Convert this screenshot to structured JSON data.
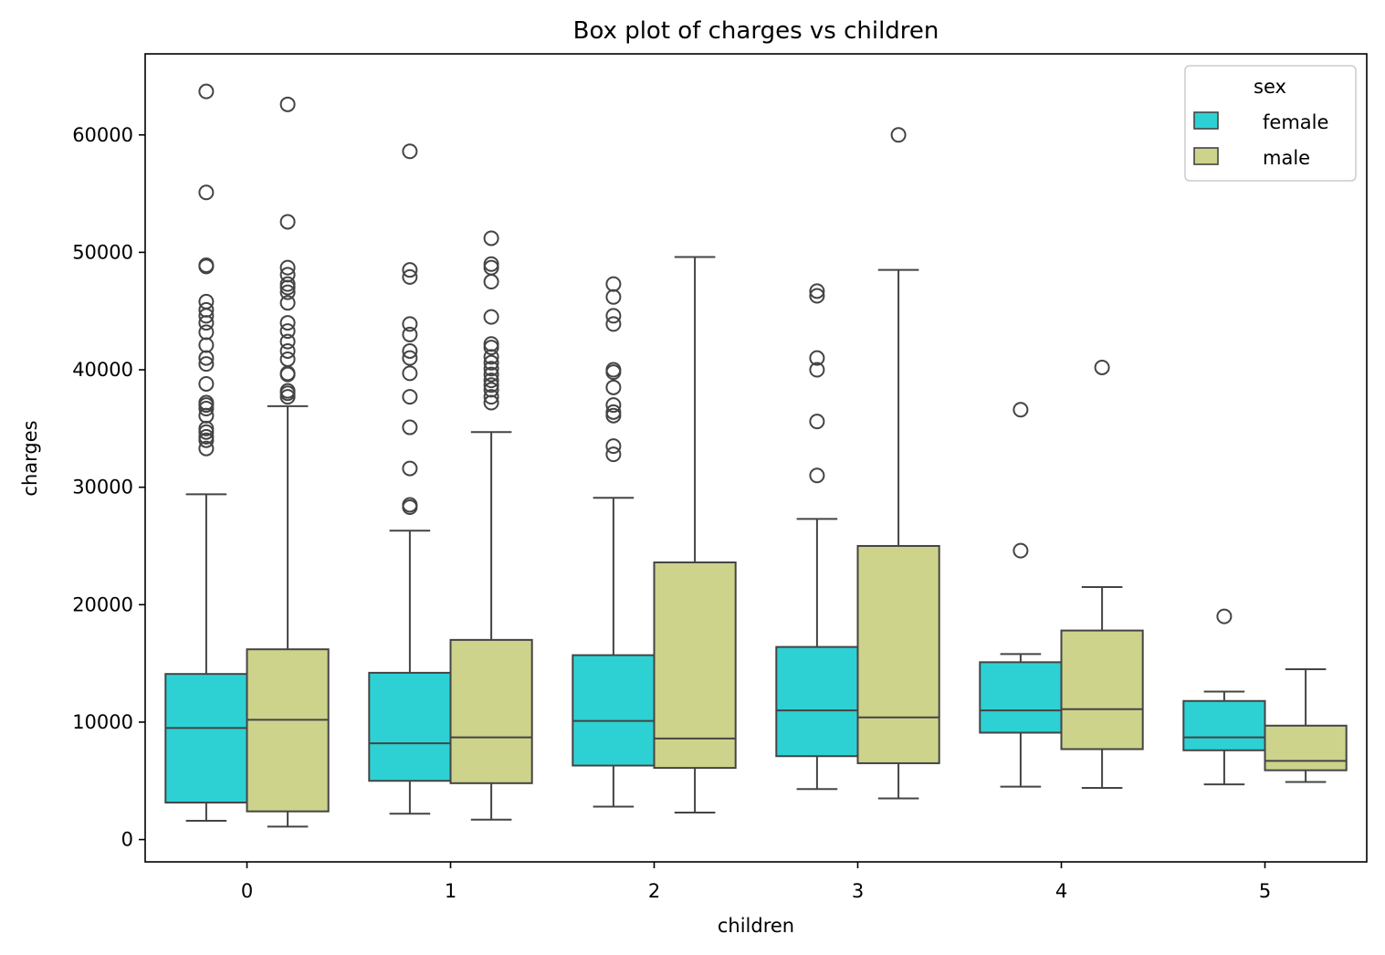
{
  "chart_data": {
    "type": "box",
    "title": "Box plot of charges vs children",
    "xlabel": "children",
    "ylabel": "charges",
    "ylim": [
      -1900,
      66900
    ],
    "yticks": [
      0,
      10000,
      20000,
      30000,
      40000,
      50000,
      60000
    ],
    "ytick_labels": [
      "0",
      "10000",
      "20000",
      "30000",
      "40000",
      "50000",
      "60000"
    ],
    "categories": [
      "0",
      "1",
      "2",
      "3",
      "4",
      "5"
    ],
    "legend": {
      "title": "sex",
      "position": "top-right"
    },
    "grid": false,
    "series": [
      {
        "name": "female",
        "color": "#2ed1d3",
        "boxes": [
          {
            "category": "0",
            "whislo": 1600,
            "q1": 3150,
            "med": 9500,
            "q3": 14100,
            "whishi": 29400,
            "fliers": [
              33300,
              34000,
              34300,
              34700,
              35000,
              36100,
              36700,
              37000,
              37200,
              38800,
              40500,
              41000,
              42100,
              43200,
              44000,
              44600,
              45100,
              45800,
              48800,
              48900,
              55100,
              63700
            ]
          },
          {
            "category": "1",
            "whislo": 2200,
            "q1": 5000,
            "med": 8200,
            "q3": 14200,
            "whishi": 26300,
            "fliers": [
              28300,
              28500,
              31600,
              35100,
              37700,
              39700,
              41000,
              41600,
              43000,
              43900,
              47900,
              48500,
              58600
            ]
          },
          {
            "category": "2",
            "whislo": 2800,
            "q1": 6300,
            "med": 10100,
            "q3": 15700,
            "whishi": 29100,
            "fliers": [
              32800,
              33500,
              36100,
              36400,
              37000,
              38500,
              39800,
              40000,
              43900,
              44600,
              46200,
              47300
            ]
          },
          {
            "category": "3",
            "whislo": 4300,
            "q1": 7100,
            "med": 11000,
            "q3": 16400,
            "whishi": 27300,
            "fliers": [
              31000,
              35600,
              40000,
              41000,
              46300,
              46700
            ]
          },
          {
            "category": "4",
            "whislo": 4500,
            "q1": 9100,
            "med": 11000,
            "q3": 15100,
            "whishi": 15800,
            "fliers": [
              24600,
              36600
            ]
          },
          {
            "category": "5",
            "whislo": 4700,
            "q1": 7600,
            "med": 8700,
            "q3": 11800,
            "whishi": 12600,
            "fliers": [
              19000
            ]
          }
        ]
      },
      {
        "name": "male",
        "color": "#cdd38b",
        "boxes": [
          {
            "category": "0",
            "whislo": 1100,
            "q1": 2400,
            "med": 10200,
            "q3": 16200,
            "whishi": 36900,
            "fliers": [
              37700,
              38000,
              38200,
              39600,
              39700,
              40900,
              41600,
              42400,
              43300,
              44000,
              45700,
              46600,
              47000,
              47300,
              48100,
              48700,
              52600,
              62600
            ]
          },
          {
            "category": "1",
            "whislo": 1700,
            "q1": 4800,
            "med": 8700,
            "q3": 17000,
            "whishi": 34700,
            "fliers": [
              37200,
              37700,
              38300,
              38700,
              39100,
              39600,
              40100,
              40600,
              41100,
              41900,
              42200,
              44500,
              47500,
              48700,
              49000,
              51200
            ]
          },
          {
            "category": "2",
            "whislo": 2300,
            "q1": 6100,
            "med": 8600,
            "q3": 23600,
            "whishi": 49600,
            "fliers": []
          },
          {
            "category": "3",
            "whislo": 3500,
            "q1": 6500,
            "med": 10400,
            "q3": 25000,
            "whishi": 48500,
            "fliers": [
              60000
            ]
          },
          {
            "category": "4",
            "whislo": 4400,
            "q1": 7700,
            "med": 11100,
            "q3": 17800,
            "whishi": 21500,
            "fliers": [
              40200
            ]
          },
          {
            "category": "5",
            "whislo": 4900,
            "q1": 5900,
            "med": 6700,
            "q3": 9700,
            "whishi": 14500,
            "fliers": []
          }
        ]
      }
    ]
  }
}
